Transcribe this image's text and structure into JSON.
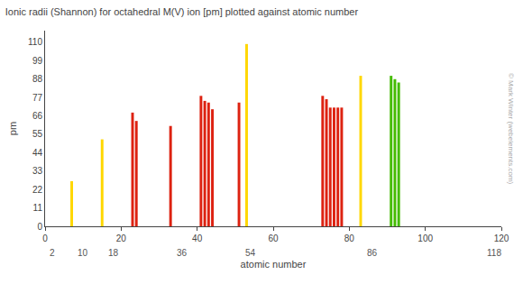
{
  "chart_data": {
    "type": "bar",
    "title": "Ionic radii (Shannon) for octahedral M(V) ion [pm] plotted against atomic number",
    "xlabel": "atomic number",
    "ylabel": "pm",
    "x": [
      7,
      15,
      23,
      24,
      33,
      41,
      42,
      43,
      44,
      51,
      53,
      73,
      74,
      75,
      76,
      77,
      78,
      83,
      91,
      92,
      93
    ],
    "values": [
      27,
      52,
      68,
      63,
      60,
      78,
      75,
      74,
      70,
      74,
      109,
      78,
      76,
      71,
      71,
      71,
      71,
      90,
      90,
      88,
      86
    ],
    "colors": [
      "#FFD700",
      "#FFD700",
      "#DD2211",
      "#DD2211",
      "#DD2211",
      "#DD2211",
      "#DD2211",
      "#DD2211",
      "#DD2211",
      "#DD2211",
      "#FFD700",
      "#DD2211",
      "#DD2211",
      "#DD2211",
      "#DD2211",
      "#DD2211",
      "#DD2211",
      "#FFD700",
      "#44BB00",
      "#44BB00",
      "#44BB00"
    ],
    "xlim": [
      0,
      120
    ],
    "ylim": [
      0,
      117
    ],
    "xticks": [
      0,
      20,
      40,
      60,
      80,
      100,
      120
    ],
    "yticks": [
      0,
      11,
      22,
      33,
      44,
      55,
      66,
      77,
      88,
      99,
      110
    ],
    "grid": false,
    "annotations": [
      {
        "x": 2,
        "text": "2"
      },
      {
        "x": 10,
        "text": "10"
      },
      {
        "x": 18,
        "text": "18"
      },
      {
        "x": 36,
        "text": "36"
      },
      {
        "x": 54,
        "text": "54"
      },
      {
        "x": 86,
        "text": "86"
      },
      {
        "x": 118,
        "text": "118"
      },
      {
        "text": "© Mark Winter (webelements.com)"
      }
    ]
  }
}
